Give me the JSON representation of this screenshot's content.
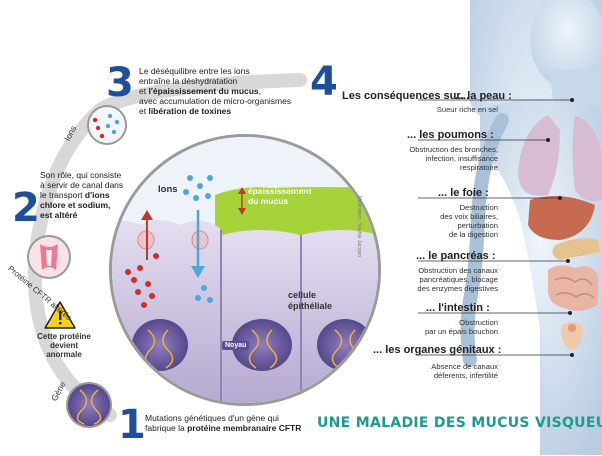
{
  "steps": {
    "s1": {
      "num": "1",
      "text_a": "Mutations génétiques d'un gène qui",
      "text_b": "fabrique la ",
      "text_b_bold": "protéine membranaire CFTR"
    },
    "s2": {
      "num": "2",
      "text_a": "Son rôle, qui consiste",
      "text_b": "à servir de canal  dans",
      "text_c": "le transport ",
      "text_c_bold": "d'ions",
      "text_d_bold": "chlore et sodium,",
      "text_e_bold": "est altéré"
    },
    "s3": {
      "num": "3",
      "text_a": "Le déséquilibre entre les ions",
      "text_b": "entraîne la déshydratation",
      "text_c": "et ",
      "text_c_bold": "l'épaississement du mucus",
      "text_c_end": ",",
      "text_d": "avec accumulation de micro-organismes",
      "text_e": "et ",
      "text_e_bold": "libération de toxines"
    },
    "s4": {
      "num": "4",
      "text": "Les conséquences sur..."
    }
  },
  "labels": {
    "ions_small": "Ions",
    "proteine": "Protéine CFTR altérée",
    "warning_a": "Cette protéine",
    "warning_b": "devient anormale",
    "gene": "Gène",
    "ions_circle": "Ions",
    "epaississement_a": "épaississement",
    "epaississement_b": "du mucus",
    "cellule_a": "cellule",
    "cellule_b": "épithéliale",
    "noyau": "Noyau",
    "credit": "Illustration : Sophie Jacopin"
  },
  "consequences": [
    {
      "head": "... la peau :",
      "lines": [
        "Sueur riche en sel"
      ]
    },
    {
      "head": "... les poumons :",
      "lines": [
        "Obstruction des bronches,",
        "infection, insuffisance",
        "respiratoire"
      ]
    },
    {
      "head": "... le foie :",
      "lines": [
        "Destruction",
        "des voix biliaires,",
        "perturbation",
        "de la digestion"
      ]
    },
    {
      "head": "... le pancréas :",
      "lines": [
        "Obstruction des canaux",
        "pancréatiques, blocage",
        "des enzymes digestives"
      ]
    },
    {
      "head": "... l'intestin :",
      "lines": [
        "Obstruction",
        "par un épais bouchon"
      ]
    },
    {
      "head": "... les organes génitaux :",
      "lines": [
        "Absence de canaux",
        "déferents, infertilité"
      ]
    }
  ],
  "title": "UNE MALADIE DES MUCUS VISQUEUX",
  "colors": {
    "number": "#1f4f9a",
    "title": "#1e9b8f",
    "mucus": "#a6d23a",
    "cell": "#c9c0dd",
    "ion_red": "#d32a2a",
    "ion_blue": "#4fa6d8"
  }
}
